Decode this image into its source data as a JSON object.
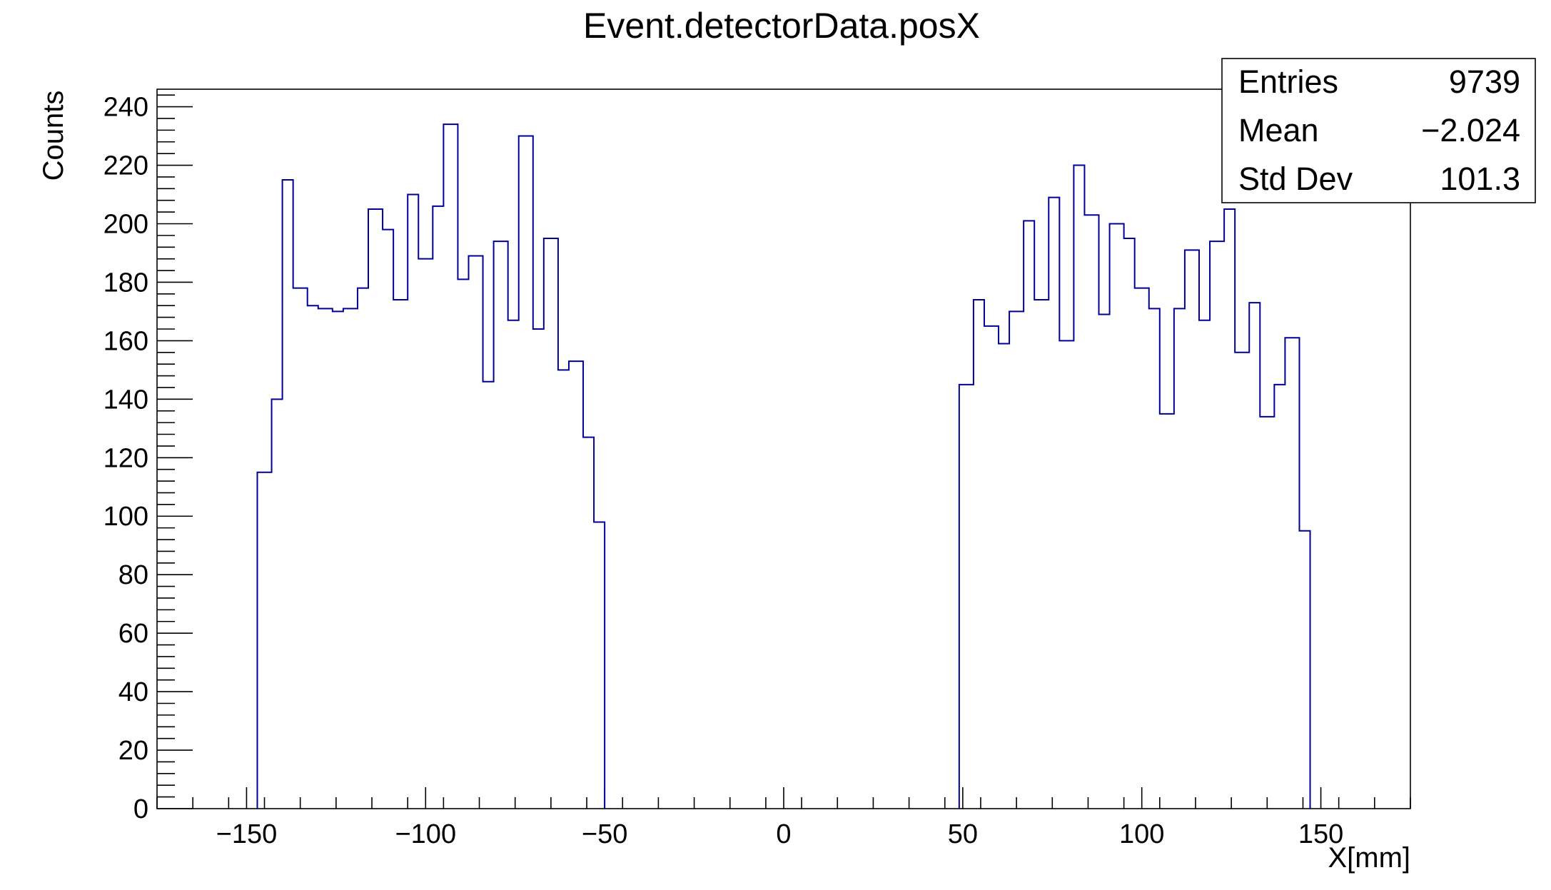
{
  "chart_data": {
    "type": "bar",
    "histogram": true,
    "title": "Event.detectorData.posX",
    "xlabel": "X[mm]",
    "ylabel": "Counts",
    "xlim": [
      -175,
      175
    ],
    "ylim": [
      0,
      246
    ],
    "bin_width": 5,
    "x_ticks": [
      -150,
      -100,
      -50,
      0,
      50,
      100,
      150
    ],
    "x_tick_labels": [
      "−150",
      "−100",
      "−50",
      "0",
      "50",
      "100",
      "150"
    ],
    "y_ticks": [
      0,
      20,
      40,
      60,
      80,
      100,
      120,
      140,
      160,
      180,
      200,
      220,
      240
    ],
    "y_tick_labels": [
      "0",
      "20",
      "40",
      "60",
      "80",
      "100",
      "120",
      "140",
      "160",
      "180",
      "200",
      "220",
      "240"
    ],
    "series": [
      {
        "bins": [
          {
            "x0": -147,
            "value": 115
          },
          {
            "x0": -143,
            "value": 140
          },
          {
            "x0": -140,
            "value": 215
          },
          {
            "x0": -137,
            "value": 178
          },
          {
            "x0": -133,
            "value": 172
          },
          {
            "x0": -130,
            "value": 171
          },
          {
            "x0": -126,
            "value": 170
          },
          {
            "x0": -123,
            "value": 171
          },
          {
            "x0": -119,
            "value": 178
          },
          {
            "x0": -116,
            "value": 205
          },
          {
            "x0": -112,
            "value": 198
          },
          {
            "x0": -109,
            "value": 174
          },
          {
            "x0": -105,
            "value": 210
          },
          {
            "x0": -102,
            "value": 188
          },
          {
            "x0": -98,
            "value": 206
          },
          {
            "x0": -95,
            "value": 234
          },
          {
            "x0": -91,
            "value": 181
          },
          {
            "x0": -88,
            "value": 189
          },
          {
            "x0": -84,
            "value": 146
          },
          {
            "x0": -81,
            "value": 194
          },
          {
            "x0": -77,
            "value": 167
          },
          {
            "x0": -74,
            "value": 230
          },
          {
            "x0": -70,
            "value": 164
          },
          {
            "x0": -67,
            "value": 195
          },
          {
            "x0": -63,
            "value": 150
          },
          {
            "x0": -60,
            "value": 153
          },
          {
            "x0": -56,
            "value": 127
          },
          {
            "x0": -53,
            "value": 98
          },
          {
            "x0": 49,
            "value": 145
          },
          {
            "x0": 53,
            "value": 174
          },
          {
            "x0": 56,
            "value": 165
          },
          {
            "x0": 60,
            "value": 159
          },
          {
            "x0": 63,
            "value": 170
          },
          {
            "x0": 67,
            "value": 201
          },
          {
            "x0": 70,
            "value": 174
          },
          {
            "x0": 74,
            "value": 209
          },
          {
            "x0": 77,
            "value": 160
          },
          {
            "x0": 81,
            "value": 220
          },
          {
            "x0": 84,
            "value": 203
          },
          {
            "x0": 88,
            "value": 169
          },
          {
            "x0": 91,
            "value": 200
          },
          {
            "x0": 95,
            "value": 195
          },
          {
            "x0": 98,
            "value": 178
          },
          {
            "x0": 102,
            "value": 171
          },
          {
            "x0": 105,
            "value": 135
          },
          {
            "x0": 109,
            "value": 171
          },
          {
            "x0": 112,
            "value": 191
          },
          {
            "x0": 116,
            "value": 167
          },
          {
            "x0": 119,
            "value": 194
          },
          {
            "x0": 123,
            "value": 205
          },
          {
            "x0": 126,
            "value": 156
          },
          {
            "x0": 130,
            "value": 173
          },
          {
            "x0": 133,
            "value": 134
          },
          {
            "x0": 137,
            "value": 145
          },
          {
            "x0": 140,
            "value": 161
          },
          {
            "x0": 144,
            "value": 95
          }
        ],
        "x_end": 147,
        "color": "#000099"
      }
    ],
    "stats_box": [
      {
        "label": "Entries",
        "value": "9739"
      },
      {
        "label": "Mean",
        "value": "−2.024"
      },
      {
        "label": "Std Dev",
        "value": "101.3"
      }
    ]
  }
}
